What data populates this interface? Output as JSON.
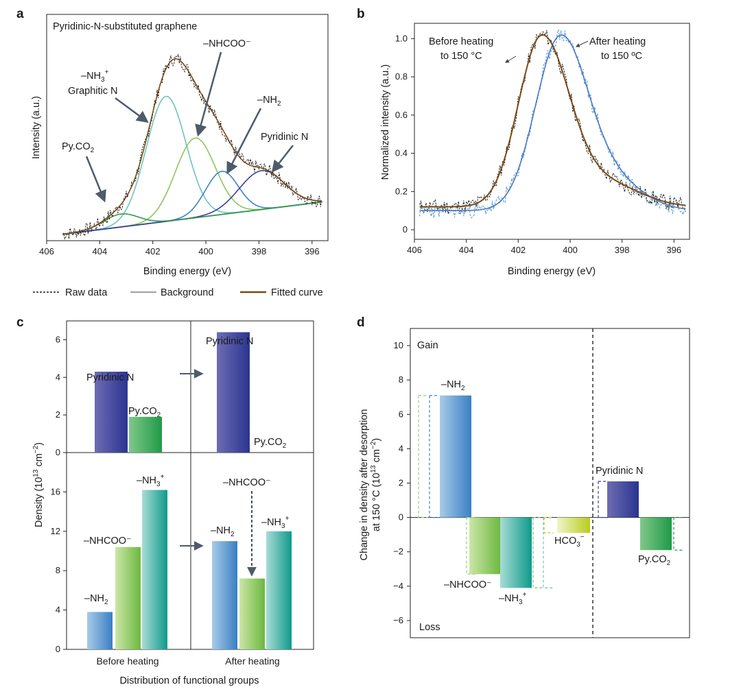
{
  "figure": {
    "colors": {
      "raw": "#1a1a1a",
      "background": "#a0a0a0",
      "fitted": "#7a4a12",
      "graphitic": "#6ec3bd",
      "nhcoo": "#8cc65a",
      "nh2": "#3a82c4",
      "pyridinic": "#3a3f9a",
      "pyco2": "#2f9a4a",
      "before": "#7a4a12",
      "after": "#4a76c0",
      "after_raw": "#5aa0dc"
    },
    "legend": {
      "raw": "Raw data",
      "background": "Background",
      "fitted": "Fitted curve"
    }
  },
  "chart_data": [
    {
      "id": "a",
      "panel_label": "a",
      "type": "line",
      "title": "Pyridinic-N-substituted graphene",
      "xlabel": "Binding energy (eV)",
      "ylabel": "Intensity (a.u.)",
      "xlim": [
        406,
        395.4
      ],
      "ylim": [
        0,
        1.05
      ],
      "xticks": [
        406,
        404,
        402,
        400,
        398,
        396
      ],
      "background": {
        "x": [
          405.4,
          395.6
        ],
        "y": [
          0.03,
          0.18
        ]
      },
      "peaks": [
        {
          "name": "Graphitic N",
          "center": 401.5,
          "height": 0.58,
          "width": 0.75
        },
        {
          "name": "-NHCOO-",
          "center": 400.4,
          "height": 0.37,
          "width": 0.75
        },
        {
          "name": "-NH2",
          "center": 399.4,
          "height": 0.2,
          "width": 0.62
        },
        {
          "name": "Pyridinic N",
          "center": 397.9,
          "height": 0.18,
          "width": 0.85
        },
        {
          "name": "Py.CO2",
          "center": 403.2,
          "height": 0.06,
          "width": 0.65
        }
      ],
      "annotations": {
        "nh3": "–NH",
        "nh3_sub": "3",
        "nh3_sup": "+",
        "graphitic": "Graphitic N",
        "nhcoo": "–NHCOO⁻",
        "nh2": "–NH",
        "nh2_sub": "2",
        "pyridinic": "Pyridinic N",
        "pyco2": "Py.CO",
        "pyco2_sub": "2"
      }
    },
    {
      "id": "b",
      "panel_label": "b",
      "type": "line",
      "xlabel": "Binding energy (eV)",
      "ylabel": "Normalized intensity (a.u.)",
      "xlim": [
        406,
        395.4
      ],
      "ylim": [
        -0.05,
        1.08
      ],
      "xticks": [
        406,
        404,
        402,
        400,
        398,
        396
      ],
      "yticks": [
        0,
        0.2,
        0.4,
        0.6,
        0.8,
        1.0
      ],
      "yticklabels": [
        "0",
        "0.2",
        "0.4",
        "0.6",
        "0.8",
        "1.0"
      ],
      "series": [
        {
          "name": "Before heating to 150 °C",
          "peak_center": 401.1,
          "fit_type": "before"
        },
        {
          "name": "After heating to 150 °C",
          "peak_center": 400.4,
          "fit_type": "after"
        }
      ],
      "annotations": {
        "before_line1": "Before heating",
        "before_line2": "to 150 °C",
        "after_line1": "After heating",
        "after_line2": "to 150 ºC"
      }
    },
    {
      "id": "c",
      "panel_label": "c",
      "type": "bar",
      "xlabel": "Distribution of functional groups",
      "ylabel": "Density (10",
      "ylabel_sup": "13",
      "ylabel_tail": " cm",
      "ylabel_sup2": "−2",
      "ylabel_end": ")",
      "categories": [
        "Before heating",
        "After heating"
      ],
      "top": {
        "ylim": [
          0,
          7
        ],
        "yticks": [
          0,
          2,
          4,
          6
        ],
        "series": [
          {
            "name": "Pyridinic N",
            "values": [
              4.3,
              6.4
            ]
          },
          {
            "name": "Py.CO2",
            "values": [
              1.9,
              0
            ]
          }
        ]
      },
      "bottom": {
        "ylim": [
          0,
          20
        ],
        "yticks": [
          0,
          4,
          8,
          12,
          16
        ],
        "series": [
          {
            "name": "-NH2",
            "values": [
              3.8,
              11.0
            ]
          },
          {
            "name": "-NHCOO-",
            "values": [
              10.4,
              7.2
            ]
          },
          {
            "name": "-NH3+",
            "values": [
              16.2,
              12.0
            ]
          }
        ]
      },
      "labels": {
        "pyridinic": "Pyridinic N",
        "pyco2": "Py.CO",
        "pyco2_sub": "2",
        "nh2": "–NH",
        "nh2_sub": "2",
        "nhcoo": "–NHCOO⁻",
        "nh3": "–NH",
        "nh3_sub": "3",
        "nh3_sup": "+",
        "nhcoo_arrow": "–NHCOO⁻"
      }
    },
    {
      "id": "d",
      "panel_label": "d",
      "type": "bar",
      "ylabel_line1": "Change in density after desorption",
      "ylabel_line2_a": "at 150 °C (10",
      "ylabel_line2_sup": "13",
      "ylabel_line2_b": " cm",
      "ylabel_line2_sup2": "−2",
      "ylabel_line2_c": ")",
      "ylim": [
        -7,
        11
      ],
      "yticks": [
        10,
        8,
        6,
        4,
        2,
        0,
        -2,
        -4,
        -6
      ],
      "yticklabels": [
        "10",
        "8",
        "6",
        "4",
        "2",
        "0",
        "−2",
        "−4",
        "−6"
      ],
      "categories": [
        "-NH2",
        "-NHCOO-",
        "-NH3+",
        "HCO3-",
        "Pyridinic N",
        "Py.CO2"
      ],
      "values": [
        7.1,
        -3.3,
        -4.1,
        -0.9,
        2.1,
        -1.9
      ],
      "gain": "Gain",
      "loss": "Loss",
      "labels": {
        "nh2": "–NH",
        "nh2_sub": "2",
        "nhcoo": "–NHCOO⁻",
        "nh3": "–NH",
        "nh3_sub": "3",
        "nh3_sup": "+",
        "hco3": "HCO",
        "hco3_sub": "3",
        "hco3_sup": "−",
        "pyridinic": "Pyridinic N",
        "pyco2": "Py.CO",
        "pyco2_sub": "2"
      }
    }
  ]
}
